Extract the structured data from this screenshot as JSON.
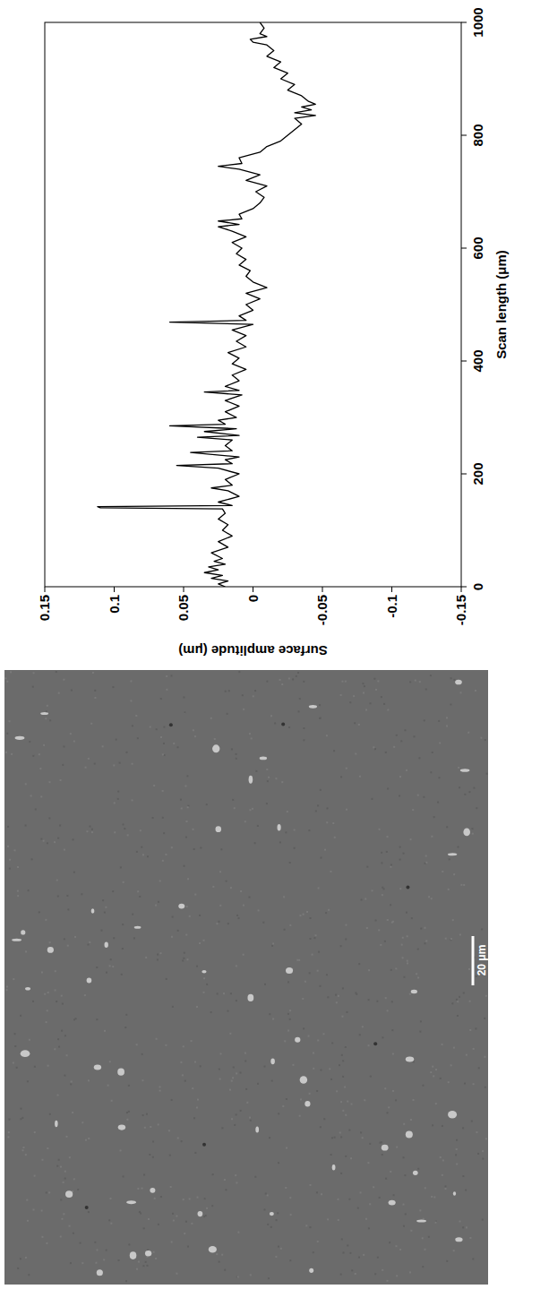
{
  "chart_data": {
    "type": "line",
    "x_label": "Scan length (μm)",
    "y_label": "Surface amplitude (μm)",
    "x": [
      0,
      5,
      10,
      15,
      20,
      25,
      30,
      35,
      40,
      45,
      50,
      60,
      70,
      80,
      90,
      100,
      110,
      120,
      130,
      138,
      140,
      142,
      144,
      150,
      160,
      170,
      175,
      180,
      190,
      200,
      210,
      215,
      218,
      225,
      230,
      238,
      241,
      250,
      260,
      265,
      268,
      275,
      280,
      285,
      288,
      295,
      300,
      310,
      320,
      330,
      340,
      345,
      348,
      355,
      365,
      375,
      385,
      395,
      405,
      415,
      425,
      435,
      445,
      455,
      465,
      469,
      472,
      480,
      490,
      500,
      510,
      520,
      530,
      540,
      550,
      560,
      570,
      580,
      590,
      600,
      610,
      620,
      630,
      638,
      642,
      648,
      652,
      660,
      670,
      680,
      690,
      700,
      710,
      720,
      730,
      740,
      745,
      750,
      760,
      770,
      780,
      790,
      800,
      810,
      820,
      830,
      835,
      840,
      845,
      850,
      855,
      860,
      870,
      880,
      890,
      900,
      910,
      920,
      930,
      940,
      950,
      960,
      965,
      970,
      975,
      980,
      990,
      1000
    ],
    "values": [
      0.02,
      0.025,
      0.018,
      0.03,
      0.022,
      0.035,
      0.025,
      0.032,
      0.02,
      0.028,
      0.022,
      0.03,
      0.018,
      0.025,
      0.015,
      0.022,
      0.018,
      0.025,
      0.02,
      0.022,
      0.11,
      0.112,
      0.015,
      0.025,
      0.01,
      0.018,
      0.03,
      0.015,
      0.02,
      0.01,
      0.025,
      0.055,
      0.015,
      0.02,
      0.01,
      0.045,
      0.015,
      0.02,
      0.015,
      0.04,
      0.01,
      0.035,
      0.012,
      0.06,
      0.02,
      0.025,
      0.012,
      0.02,
      0.01,
      0.02,
      0.008,
      0.035,
      0.01,
      0.02,
      0.01,
      0.015,
      0.005,
      0.015,
      0.01,
      0.018,
      0.005,
      0.012,
      0.005,
      0.015,
      0.0,
      0.06,
      0.005,
      0.01,
      0.0,
      0.005,
      -0.005,
      0.005,
      -0.01,
      0.0,
      0.005,
      0.002,
      0.01,
      0.005,
      0.012,
      0.008,
      0.015,
      0.005,
      0.015,
      0.025,
      0.01,
      0.025,
      0.008,
      0.01,
      0.0,
      -0.005,
      -0.008,
      -0.002,
      -0.01,
      0.005,
      -0.005,
      0.01,
      0.025,
      0.008,
      0.01,
      -0.005,
      -0.01,
      -0.02,
      -0.025,
      -0.03,
      -0.035,
      -0.03,
      -0.045,
      -0.03,
      -0.042,
      -0.035,
      -0.045,
      -0.04,
      -0.035,
      -0.025,
      -0.03,
      -0.02,
      -0.025,
      -0.015,
      -0.02,
      -0.01,
      -0.015,
      -0.01,
      0.0,
      0.002,
      -0.01,
      -0.005,
      -0.008,
      -0.005
    ],
    "color": "#000000",
    "xlim": [
      0,
      1000
    ],
    "xticks": [
      0,
      200,
      400,
      600,
      800,
      1000
    ],
    "ylim": [
      -0.15,
      0.15
    ],
    "yticks": [
      -0.15,
      -0.1,
      -0.05,
      0,
      0.05,
      0.1,
      0.15
    ],
    "grid": false
  },
  "micrograph": {
    "scale_bar": "20 μm"
  }
}
